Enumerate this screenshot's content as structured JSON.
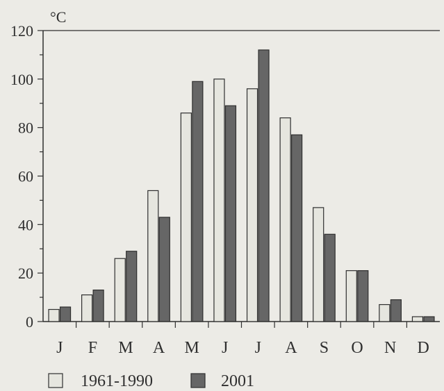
{
  "chart_data": {
    "type": "bar",
    "ylabel": "°C",
    "categories": [
      "J",
      "F",
      "M",
      "A",
      "M",
      "J",
      "J",
      "A",
      "S",
      "O",
      "N",
      "D"
    ],
    "ylim": [
      0,
      120
    ],
    "yticks": [
      0,
      20,
      40,
      60,
      80,
      100,
      120
    ],
    "series": [
      {
        "name": "1961-1990",
        "color": "#e6e6df",
        "values": [
          5,
          11,
          26,
          54,
          86,
          100,
          96,
          84,
          47,
          21,
          7,
          2
        ]
      },
      {
        "name": "2001",
        "color": "#666666",
        "values": [
          6,
          13,
          29,
          43,
          99,
          89,
          112,
          77,
          36,
          21,
          9,
          2
        ]
      }
    ],
    "grid": false,
    "legend": "bottom-left"
  }
}
